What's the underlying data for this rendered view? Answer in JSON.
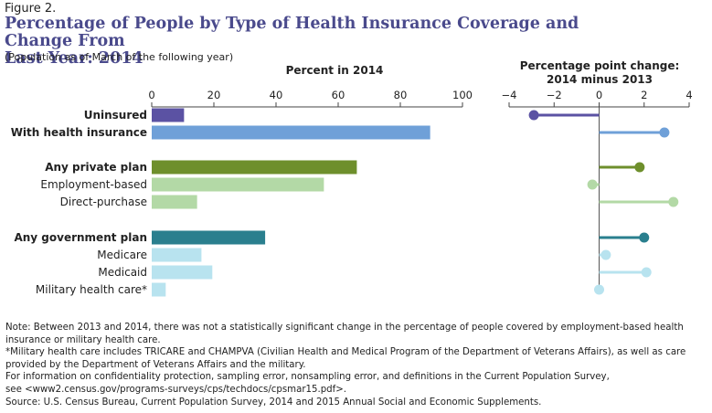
{
  "figure_label": "Figure 2.",
  "title_line1": "Percentage of People by Type of Health Insurance Coverage and Change From",
  "title_line2": "Last Year: 2014",
  "subtitle": "(Population as of March of the following year)",
  "colors": {
    "title": "#4a4a8c",
    "uninsured": "#5b52a3",
    "with_insurance": "#6fa0d8",
    "private": "#6e8f2c",
    "private_sub": "#b3d9a6",
    "government": "#2a7f8e",
    "government_sub": "#b8e3ef"
  },
  "chart_data": [
    {
      "type": "bar",
      "orientation": "horizontal",
      "title": "Percent in 2014",
      "xlim": [
        0,
        100
      ],
      "xticks": [
        0,
        20,
        40,
        60,
        80,
        100
      ],
      "categories": [
        "Uninsured",
        "With health insurance",
        "Any private plan",
        "Employment-based",
        "Direct-purchase",
        "Any government plan",
        "Medicare",
        "Medicaid",
        "Military health care*"
      ],
      "values": [
        10.4,
        89.6,
        66.0,
        55.4,
        14.6,
        36.5,
        16.0,
        19.5,
        4.5
      ]
    },
    {
      "type": "lollipop",
      "title": "Percentage point change:",
      "title_line2": "2014 minus 2013",
      "xlim": [
        -4,
        4
      ],
      "xticks": [
        -4,
        -2,
        0,
        2,
        4
      ],
      "xtick_labels": [
        "−4",
        "−2",
        "0",
        "2",
        "4"
      ],
      "categories": [
        "Uninsured",
        "With health insurance",
        "Any private plan",
        "Employment-based",
        "Direct-purchase",
        "Any government plan",
        "Medicare",
        "Medicaid",
        "Military health care*"
      ],
      "values": [
        -2.9,
        2.9,
        1.8,
        -0.3,
        3.3,
        2.0,
        0.3,
        2.1,
        0.0
      ]
    }
  ],
  "rows": [
    {
      "label": "Uninsured",
      "bold": true,
      "color_key": "uninsured"
    },
    {
      "label": "With health insurance",
      "bold": true,
      "color_key": "with_insurance"
    },
    {
      "label": "Any private plan",
      "bold": true,
      "color_key": "private"
    },
    {
      "label": "Employment-based",
      "bold": false,
      "color_key": "private_sub"
    },
    {
      "label": "Direct-purchase",
      "bold": false,
      "color_key": "private_sub"
    },
    {
      "label": "Any government plan",
      "bold": true,
      "color_key": "government"
    },
    {
      "label": "Medicare",
      "bold": false,
      "color_key": "government_sub"
    },
    {
      "label": "Medicaid",
      "bold": false,
      "color_key": "government_sub"
    },
    {
      "label": "Military health care*",
      "bold": false,
      "color_key": "government_sub"
    }
  ],
  "notes": {
    "note": "Note: Between 2013 and 2014, there was not a statistically significant change in the percentage of people covered by employment-based health insurance or military health care.",
    "military": "*Military health care includes TRICARE and CHAMPVA (Civilian Health and Medical Program of the Department of Veterans Affairs), as well as care provided by the Department of Veterans Affairs and the military.",
    "info_line1": "For information on confidentiality protection, sampling error, nonsampling error, and definitions in the Current Population Survey,",
    "info_line2": "see <www2.census.gov/programs-surveys/cps/techdocs/cpsmar15.pdf>.",
    "source": "Source: U.S. Census Bureau, Current Population Survey, 2014 and 2015 Annual Social and Economic Supplements."
  }
}
